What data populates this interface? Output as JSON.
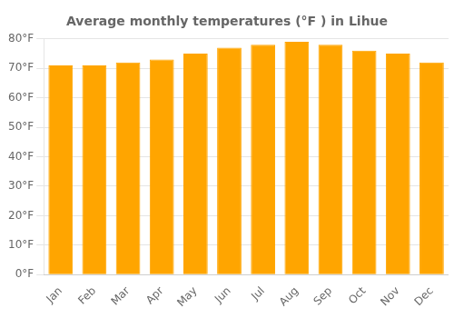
{
  "chart_data": {
    "type": "bar",
    "title": "Average monthly temperatures (°F ) in Lihue",
    "categories": [
      "Jan",
      "Feb",
      "Mar",
      "Apr",
      "May",
      "Jun",
      "Jul",
      "Aug",
      "Sep",
      "Oct",
      "Nov",
      "Dec"
    ],
    "values": [
      71,
      71,
      72,
      73,
      75,
      77,
      78,
      79,
      78,
      76,
      75,
      72
    ],
    "color": "#FFA500",
    "ylim": [
      0,
      80
    ],
    "yticks": [
      {
        "value": 0,
        "label": "0°F"
      },
      {
        "value": 10,
        "label": "10°F"
      },
      {
        "value": 20,
        "label": "20°F"
      },
      {
        "value": 30,
        "label": "30°F"
      },
      {
        "value": 40,
        "label": "40°F"
      },
      {
        "value": 50,
        "label": "50°F"
      },
      {
        "value": 60,
        "label": "60°F"
      },
      {
        "value": 70,
        "label": "70°F"
      },
      {
        "value": 80,
        "label": "80°F"
      }
    ],
    "grid": true
  }
}
